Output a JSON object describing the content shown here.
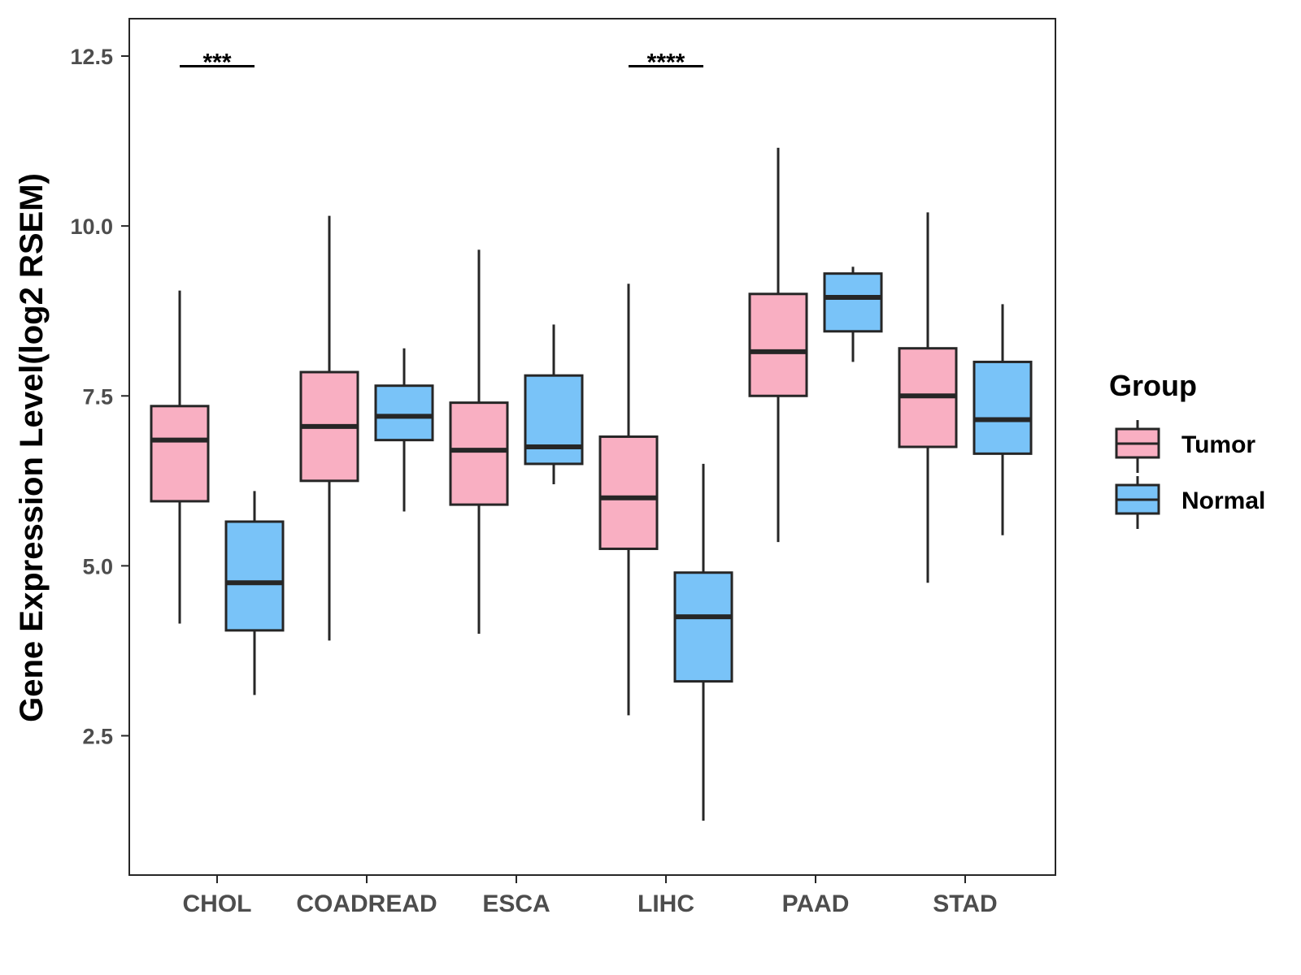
{
  "colors": {
    "tumor": "#F9AFC2",
    "normal": "#79C3F8",
    "stroke": "#262626",
    "axis_text": "#4d4d4d"
  },
  "chart_data": {
    "type": "boxplot",
    "ylabel": "Gene Expression Level(log2 RSEM)",
    "xlabel": "",
    "ylim": [
      0.45,
      13.05
    ],
    "yticks": [
      {
        "value": 2.5,
        "label": "2.5"
      },
      {
        "value": 5.0,
        "label": "5.0"
      },
      {
        "value": 7.5,
        "label": "7.5"
      },
      {
        "value": 10.0,
        "label": "10.0"
      },
      {
        "value": 12.5,
        "label": "12.5"
      }
    ],
    "categories": [
      "CHOL",
      "COADREAD",
      "ESCA",
      "LIHC",
      "PAAD",
      "STAD"
    ],
    "legend": {
      "title": "Group",
      "position": "right",
      "entries": [
        {
          "key": "tumor",
          "label": "Tumor"
        },
        {
          "key": "normal",
          "label": "Normal"
        }
      ]
    },
    "series": [
      {
        "name": "Tumor",
        "key": "tumor",
        "boxes": [
          {
            "category": "CHOL",
            "min": 4.15,
            "q1": 5.95,
            "median": 6.85,
            "q3": 7.35,
            "max": 9.05
          },
          {
            "category": "COADREAD",
            "min": 3.9,
            "q1": 6.25,
            "median": 7.05,
            "q3": 7.85,
            "max": 10.15
          },
          {
            "category": "ESCA",
            "min": 4.0,
            "q1": 5.9,
            "median": 6.7,
            "q3": 7.4,
            "max": 9.65
          },
          {
            "category": "LIHC",
            "min": 2.8,
            "q1": 5.25,
            "median": 6.0,
            "q3": 6.9,
            "max": 9.15
          },
          {
            "category": "PAAD",
            "min": 5.35,
            "q1": 7.5,
            "median": 8.15,
            "q3": 9.0,
            "max": 11.15
          },
          {
            "category": "STAD",
            "min": 4.75,
            "q1": 6.75,
            "median": 7.5,
            "q3": 8.2,
            "max": 10.2
          }
        ]
      },
      {
        "name": "Normal",
        "key": "normal",
        "boxes": [
          {
            "category": "CHOL",
            "min": 3.1,
            "q1": 4.05,
            "median": 4.75,
            "q3": 5.65,
            "max": 6.1
          },
          {
            "category": "COADREAD",
            "min": 5.8,
            "q1": 6.85,
            "median": 7.2,
            "q3": 7.65,
            "max": 8.2
          },
          {
            "category": "ESCA",
            "min": 6.2,
            "q1": 6.5,
            "median": 6.75,
            "q3": 7.8,
            "max": 8.55
          },
          {
            "category": "LIHC",
            "min": 1.25,
            "q1": 3.3,
            "median": 4.25,
            "q3": 4.9,
            "max": 6.5
          },
          {
            "category": "PAAD",
            "min": 8.0,
            "q1": 8.45,
            "median": 8.95,
            "q3": 9.3,
            "max": 9.4
          },
          {
            "category": "STAD",
            "min": 5.45,
            "q1": 6.65,
            "median": 7.15,
            "q3": 8.0,
            "max": 8.85
          }
        ]
      }
    ],
    "annotations": [
      {
        "category": "CHOL",
        "label": "***",
        "y": 12.35
      },
      {
        "category": "LIHC",
        "label": "****",
        "y": 12.35
      }
    ]
  }
}
